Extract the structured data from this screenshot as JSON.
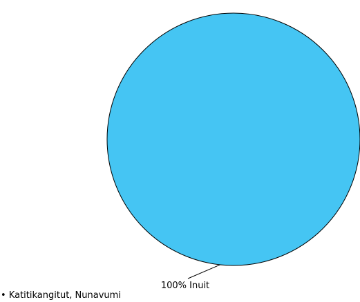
{
  "chart_data": {
    "type": "pie",
    "slices": [
      {
        "label": "100% Inuit",
        "value": 100
      }
    ],
    "colors": {
      "slice": "#45c5f3",
      "outline": "#000000"
    },
    "legend": {
      "bullet": "•",
      "text": "Katitikangitut, Nunavumi"
    },
    "legend_position": "bottom-left"
  }
}
